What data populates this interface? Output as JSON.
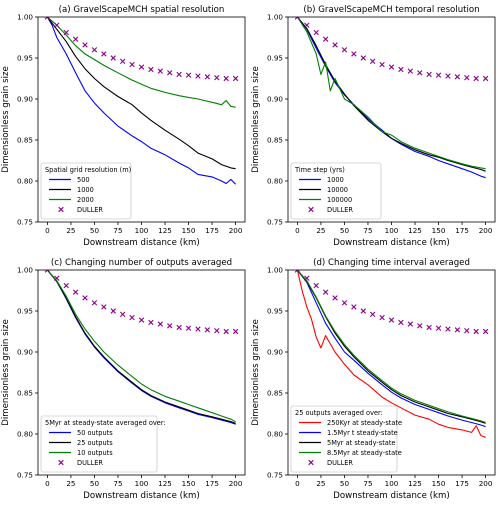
{
  "chart_data": [
    {
      "type": "line",
      "title": "(a) GravelScapeMCH spatial resolution",
      "xlabel": "Downstream distance (km)",
      "ylabel": "Dimensionless grain size",
      "xlim": [
        -10,
        210
      ],
      "ylim": [
        0.75,
        1.0
      ],
      "xticks": [
        0,
        25,
        50,
        75,
        100,
        125,
        150,
        175,
        200
      ],
      "yticks": [
        0.75,
        0.8,
        0.85,
        0.9,
        0.95,
        1.0
      ],
      "grid": false,
      "legend": {
        "title": "Spatial grid resolution (m)",
        "position": "lower-left"
      },
      "series": [
        {
          "name": "500",
          "color": "#0000ff",
          "x": [
            0,
            5,
            10,
            20,
            30,
            40,
            50,
            60,
            75,
            90,
            100,
            110,
            125,
            140,
            150,
            160,
            175,
            185,
            190,
            195,
            200
          ],
          "y": [
            1.0,
            0.99,
            0.975,
            0.955,
            0.932,
            0.91,
            0.895,
            0.883,
            0.867,
            0.855,
            0.848,
            0.84,
            0.832,
            0.822,
            0.816,
            0.808,
            0.805,
            0.8,
            0.797,
            0.802,
            0.796
          ]
        },
        {
          "name": "1000",
          "color": "#000000",
          "x": [
            0,
            10,
            20,
            30,
            40,
            50,
            60,
            75,
            90,
            100,
            110,
            125,
            140,
            150,
            160,
            175,
            185,
            195,
            200
          ],
          "y": [
            1.0,
            0.985,
            0.97,
            0.952,
            0.937,
            0.925,
            0.915,
            0.903,
            0.893,
            0.883,
            0.874,
            0.862,
            0.851,
            0.843,
            0.834,
            0.827,
            0.82,
            0.816,
            0.815
          ]
        },
        {
          "name": "2000",
          "color": "#008000",
          "x": [
            0,
            10,
            20,
            30,
            40,
            50,
            60,
            75,
            90,
            100,
            110,
            125,
            140,
            150,
            160,
            175,
            185,
            190,
            195,
            200
          ],
          "y": [
            1.0,
            0.99,
            0.978,
            0.965,
            0.955,
            0.948,
            0.941,
            0.932,
            0.923,
            0.918,
            0.913,
            0.908,
            0.904,
            0.902,
            0.9,
            0.896,
            0.893,
            0.898,
            0.891,
            0.89
          ]
        },
        {
          "name": "DULLER",
          "color": "#8b008b",
          "marker": "x",
          "style": "markers",
          "x": [
            0,
            10,
            20,
            30,
            40,
            50,
            60,
            70,
            80,
            90,
            100,
            110,
            120,
            130,
            140,
            150,
            160,
            170,
            180,
            190,
            200
          ],
          "y": [
            1.0,
            0.99,
            0.981,
            0.973,
            0.966,
            0.96,
            0.955,
            0.95,
            0.946,
            0.942,
            0.939,
            0.936,
            0.934,
            0.932,
            0.93,
            0.929,
            0.928,
            0.927,
            0.926,
            0.925,
            0.925
          ]
        }
      ]
    },
    {
      "type": "line",
      "title": "(b) GravelScapeMCH temporal resolution",
      "xlabel": "Downstream distance (km)",
      "ylabel": "Dimensionless grain size",
      "xlim": [
        -10,
        210
      ],
      "ylim": [
        0.75,
        1.0
      ],
      "xticks": [
        0,
        25,
        50,
        75,
        100,
        125,
        150,
        175,
        200
      ],
      "yticks": [
        0.75,
        0.8,
        0.85,
        0.9,
        0.95,
        1.0
      ],
      "grid": false,
      "legend": {
        "title": "Time step (yrs)",
        "position": "lower-left"
      },
      "series": [
        {
          "name": "1000",
          "color": "#0000ff",
          "x": [
            0,
            10,
            20,
            30,
            40,
            50,
            60,
            75,
            90,
            100,
            110,
            125,
            140,
            150,
            160,
            175,
            185,
            195,
            200
          ],
          "y": [
            1.0,
            0.985,
            0.962,
            0.94,
            0.92,
            0.905,
            0.893,
            0.876,
            0.862,
            0.852,
            0.845,
            0.836,
            0.83,
            0.825,
            0.821,
            0.815,
            0.811,
            0.806,
            0.804
          ]
        },
        {
          "name": "10000",
          "color": "#000000",
          "x": [
            0,
            10,
            20,
            30,
            40,
            50,
            60,
            75,
            90,
            100,
            110,
            125,
            140,
            150,
            160,
            175,
            185,
            195,
            200
          ],
          "y": [
            1.0,
            0.986,
            0.965,
            0.942,
            0.922,
            0.906,
            0.892,
            0.874,
            0.86,
            0.852,
            0.846,
            0.838,
            0.832,
            0.829,
            0.825,
            0.82,
            0.817,
            0.814,
            0.812
          ]
        },
        {
          "name": "100000",
          "color": "#008000",
          "x": [
            0,
            10,
            20,
            25,
            30,
            35,
            40,
            50,
            60,
            75,
            90,
            100,
            110,
            125,
            140,
            150,
            160,
            175,
            185,
            195,
            200
          ],
          "y": [
            1.0,
            0.982,
            0.955,
            0.93,
            0.945,
            0.91,
            0.925,
            0.9,
            0.893,
            0.878,
            0.86,
            0.856,
            0.848,
            0.84,
            0.834,
            0.83,
            0.826,
            0.821,
            0.818,
            0.816,
            0.815
          ]
        },
        {
          "name": "DULLER",
          "color": "#8b008b",
          "marker": "x",
          "style": "markers",
          "x": [
            0,
            10,
            20,
            30,
            40,
            50,
            60,
            70,
            80,
            90,
            100,
            110,
            120,
            130,
            140,
            150,
            160,
            170,
            180,
            190,
            200
          ],
          "y": [
            1.0,
            0.99,
            0.981,
            0.973,
            0.966,
            0.96,
            0.955,
            0.95,
            0.946,
            0.942,
            0.939,
            0.936,
            0.934,
            0.932,
            0.93,
            0.929,
            0.928,
            0.927,
            0.926,
            0.925,
            0.925
          ]
        }
      ]
    },
    {
      "type": "line",
      "title": "(c) Changing number of outputs averaged",
      "xlabel": "Downstream distance (km)",
      "ylabel": "Dimensionless grain size",
      "xlim": [
        -10,
        210
      ],
      "ylim": [
        0.75,
        1.0
      ],
      "xticks": [
        0,
        25,
        50,
        75,
        100,
        125,
        150,
        175,
        200
      ],
      "yticks": [
        0.75,
        0.8,
        0.85,
        0.9,
        0.95,
        1.0
      ],
      "grid": false,
      "legend": {
        "title": "5Myr at steady-state averaged over:",
        "position": "lower-left"
      },
      "series": [
        {
          "name": "50 outputs",
          "color": "#0000ff",
          "x": [
            0,
            10,
            20,
            30,
            40,
            50,
            60,
            75,
            90,
            100,
            110,
            125,
            140,
            150,
            160,
            175,
            185,
            195,
            200
          ],
          "y": [
            1.0,
            0.986,
            0.965,
            0.942,
            0.922,
            0.906,
            0.893,
            0.876,
            0.862,
            0.853,
            0.846,
            0.838,
            0.832,
            0.828,
            0.824,
            0.82,
            0.817,
            0.814,
            0.812
          ]
        },
        {
          "name": "25 outputs",
          "color": "#000000",
          "x": [
            0,
            10,
            20,
            30,
            40,
            50,
            60,
            75,
            90,
            100,
            110,
            125,
            140,
            150,
            160,
            175,
            185,
            195,
            200
          ],
          "y": [
            1.0,
            0.986,
            0.966,
            0.943,
            0.923,
            0.907,
            0.894,
            0.877,
            0.863,
            0.854,
            0.847,
            0.839,
            0.833,
            0.829,
            0.825,
            0.821,
            0.818,
            0.815,
            0.813
          ]
        },
        {
          "name": "10 outputs",
          "color": "#008000",
          "x": [
            0,
            10,
            20,
            30,
            40,
            50,
            60,
            75,
            90,
            100,
            110,
            125,
            140,
            150,
            160,
            175,
            185,
            195,
            200
          ],
          "y": [
            1.0,
            0.987,
            0.968,
            0.946,
            0.928,
            0.913,
            0.9,
            0.884,
            0.87,
            0.861,
            0.854,
            0.846,
            0.84,
            0.836,
            0.832,
            0.826,
            0.822,
            0.818,
            0.815
          ]
        },
        {
          "name": "DULLER",
          "color": "#8b008b",
          "marker": "x",
          "style": "markers",
          "x": [
            0,
            10,
            20,
            30,
            40,
            50,
            60,
            70,
            80,
            90,
            100,
            110,
            120,
            130,
            140,
            150,
            160,
            170,
            180,
            190,
            200
          ],
          "y": [
            1.0,
            0.99,
            0.981,
            0.973,
            0.966,
            0.96,
            0.955,
            0.95,
            0.946,
            0.942,
            0.939,
            0.936,
            0.934,
            0.932,
            0.93,
            0.929,
            0.928,
            0.927,
            0.926,
            0.925,
            0.925
          ]
        }
      ]
    },
    {
      "type": "line",
      "title": "(d) Changing time interval averaged",
      "xlabel": "Downstream distance (km)",
      "ylabel": "Dimensionless grain size",
      "xlim": [
        -10,
        210
      ],
      "ylim": [
        0.75,
        1.0
      ],
      "xticks": [
        0,
        25,
        50,
        75,
        100,
        125,
        150,
        175,
        200
      ],
      "yticks": [
        0.75,
        0.8,
        0.85,
        0.9,
        0.95,
        1.0
      ],
      "grid": false,
      "legend": {
        "title": "25 outputs averaged over:",
        "position": "lower-left"
      },
      "series": [
        {
          "name": "250Kyr at steady-state",
          "color": "#ff0000",
          "x": [
            0,
            5,
            10,
            15,
            20,
            25,
            30,
            40,
            50,
            60,
            75,
            90,
            100,
            110,
            125,
            140,
            150,
            160,
            175,
            185,
            190,
            195,
            200
          ],
          "y": [
            1.0,
            0.975,
            0.955,
            0.94,
            0.918,
            0.905,
            0.92,
            0.9,
            0.885,
            0.872,
            0.86,
            0.845,
            0.838,
            0.832,
            0.823,
            0.818,
            0.812,
            0.808,
            0.805,
            0.802,
            0.81,
            0.798,
            0.796
          ]
        },
        {
          "name": "1.5Myr t steady-state",
          "color": "#0000ff",
          "x": [
            0,
            10,
            20,
            30,
            40,
            50,
            60,
            75,
            90,
            100,
            110,
            125,
            140,
            150,
            160,
            175,
            185,
            195,
            200
          ],
          "y": [
            1.0,
            0.985,
            0.96,
            0.935,
            0.917,
            0.9,
            0.89,
            0.874,
            0.86,
            0.851,
            0.844,
            0.836,
            0.83,
            0.826,
            0.822,
            0.817,
            0.814,
            0.811,
            0.809
          ]
        },
        {
          "name": "5Myr at steady-state",
          "color": "#000000",
          "x": [
            0,
            10,
            20,
            30,
            40,
            50,
            60,
            75,
            90,
            100,
            110,
            125,
            140,
            150,
            160,
            175,
            185,
            195,
            200
          ],
          "y": [
            1.0,
            0.986,
            0.966,
            0.943,
            0.923,
            0.907,
            0.894,
            0.877,
            0.863,
            0.854,
            0.847,
            0.839,
            0.833,
            0.829,
            0.825,
            0.821,
            0.818,
            0.815,
            0.813
          ]
        },
        {
          "name": "8.5Myr at steady-state",
          "color": "#008000",
          "x": [
            0,
            10,
            20,
            30,
            40,
            50,
            60,
            75,
            90,
            100,
            110,
            125,
            140,
            150,
            160,
            175,
            185,
            195,
            200
          ],
          "y": [
            1.0,
            0.987,
            0.967,
            0.944,
            0.925,
            0.909,
            0.896,
            0.879,
            0.865,
            0.856,
            0.849,
            0.841,
            0.835,
            0.831,
            0.827,
            0.822,
            0.819,
            0.816,
            0.814
          ]
        },
        {
          "name": "DULLER",
          "color": "#8b008b",
          "marker": "x",
          "style": "markers",
          "x": [
            0,
            10,
            20,
            30,
            40,
            50,
            60,
            70,
            80,
            90,
            100,
            110,
            120,
            130,
            140,
            150,
            160,
            170,
            180,
            190,
            200
          ],
          "y": [
            1.0,
            0.99,
            0.981,
            0.973,
            0.966,
            0.96,
            0.955,
            0.95,
            0.946,
            0.942,
            0.939,
            0.936,
            0.934,
            0.932,
            0.93,
            0.929,
            0.928,
            0.927,
            0.926,
            0.925,
            0.925
          ]
        }
      ]
    }
  ]
}
